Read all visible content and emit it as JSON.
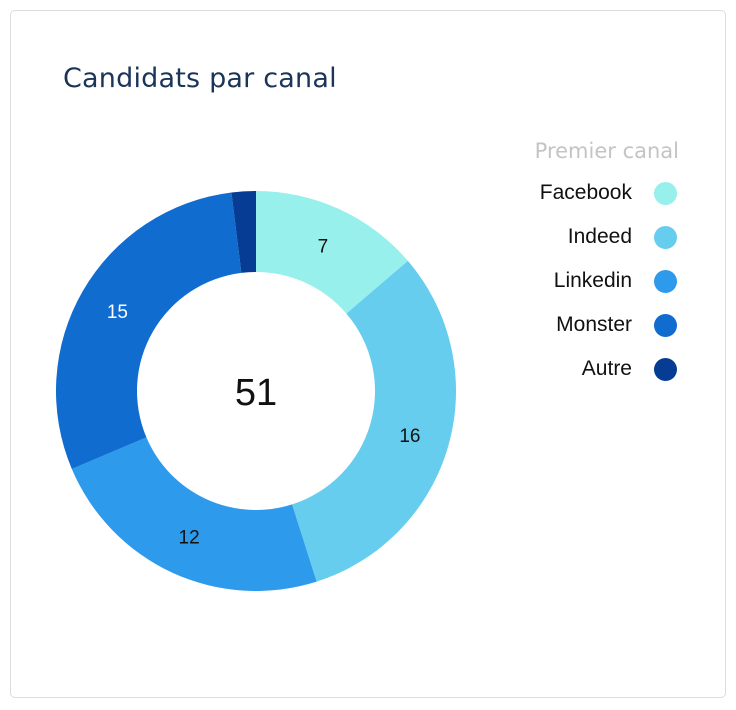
{
  "chart_data": {
    "type": "pie",
    "title": "Candidats par canal",
    "legend_title": "Premier canal",
    "legend_position": "top-right",
    "total_label": "51",
    "categories": [
      "Facebook",
      "Indeed",
      "Linkedin",
      "Monster",
      "Autre"
    ],
    "values": [
      7,
      16,
      12,
      15,
      1
    ],
    "value_labels": [
      "7",
      "16",
      "12",
      "15",
      ""
    ],
    "colors": [
      "#97f0ec",
      "#67cdee",
      "#2e9aec",
      "#106ccf",
      "#063c93"
    ],
    "label_colors": [
      "#111111",
      "#111111",
      "#111111",
      "#ffffff",
      "#ffffff"
    ]
  }
}
